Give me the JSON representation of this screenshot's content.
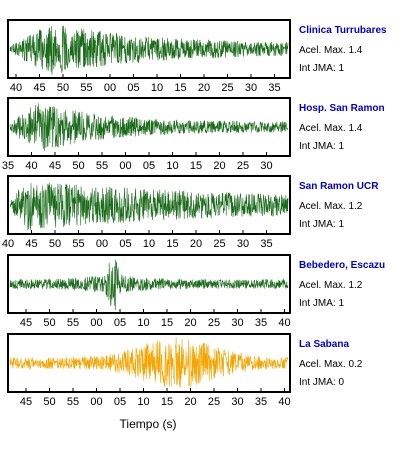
{
  "chart_data": {
    "type": "line",
    "xlabel": "Tiempo (s)",
    "tick_interval_seconds": 5,
    "panels": [
      {
        "station": "Clinica Turrubares",
        "acel_max_label": "Acel. Max. 1.4",
        "int_jma_label": "Int JMA: 1",
        "color": "#1a6b1a",
        "tick_labels": [
          "40",
          "45",
          "50",
          "55",
          "00",
          "05",
          "10",
          "15",
          "20",
          "25",
          "30",
          "35"
        ],
        "onset_tick_fraction": 0.15,
        "envelope_peak": 1.0,
        "decay": 0.12
      },
      {
        "station": "Hosp. San Ramon",
        "acel_max_label": "Acel. Max. 1.4",
        "int_jma_label": "Int JMA: 1",
        "color": "#1a6b1a",
        "tick_labels": [
          "35",
          "40",
          "45",
          "50",
          "55",
          "00",
          "05",
          "10",
          "15",
          "20",
          "25",
          "30"
        ],
        "onset_tick_fraction": 0.1,
        "envelope_peak": 1.0,
        "decay": 0.08
      },
      {
        "station": "San Ramon UCR",
        "acel_max_label": "Acel. Max. 1.2",
        "int_jma_label": "Int JMA: 1",
        "color": "#1a6b1a",
        "tick_labels": [
          "40",
          "45",
          "50",
          "55",
          "00",
          "05",
          "10",
          "15",
          "20",
          "25",
          "30",
          "35"
        ],
        "onset_tick_fraction": 0.05,
        "envelope_peak": 1.0,
        "decay": 0.25
      },
      {
        "station": "Bebedero, Escazu",
        "acel_max_label": "Acel. Max. 1.2",
        "int_jma_label": "Int JMA: 1",
        "color": "#1a6b1a",
        "tick_labels": [
          "45",
          "50",
          "55",
          "00",
          "05",
          "10",
          "15",
          "20",
          "25",
          "30",
          "35",
          "40"
        ],
        "onset_tick_fraction": 0.42,
        "envelope_peak": 1.0,
        "decay": 0.3
      },
      {
        "station": "La Sabana",
        "acel_max_label": "Acel. Max. 0.2",
        "int_jma_label": "Int JMA: 0",
        "color": "#f5a500",
        "tick_labels": [
          "45",
          "50",
          "55",
          "00",
          "05",
          "10",
          "15",
          "20",
          "25",
          "30",
          "35",
          "40"
        ],
        "onset_tick_fraction": 0.65,
        "envelope_peak": 1.0,
        "decay": 0.05
      }
    ]
  }
}
